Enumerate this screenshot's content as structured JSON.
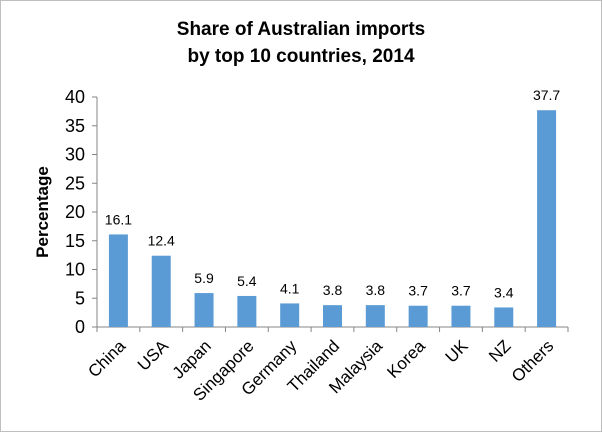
{
  "chart_data": {
    "type": "bar",
    "title_lines": [
      "Share of Australian imports",
      "by top 10 countries, 2014"
    ],
    "xlabel": "",
    "ylabel": "Percentage",
    "ylim": [
      0,
      40
    ],
    "yticks": [
      "0",
      "5",
      "10",
      "15",
      "20",
      "25",
      "30",
      "35",
      "40"
    ],
    "categories": [
      "China",
      "USA",
      "Japan",
      "Singapore",
      "Germany",
      "Thailand",
      "Malaysia",
      "Korea",
      "UK",
      "NZ",
      "Others"
    ],
    "values": [
      16.1,
      12.4,
      5.9,
      5.4,
      4.1,
      3.8,
      3.8,
      3.7,
      3.7,
      3.4,
      37.7
    ],
    "value_labels": [
      "16.1",
      "12.4",
      "5.9",
      "5.4",
      "4.1",
      "3.8",
      "3.8",
      "3.7",
      "3.7",
      "3.4",
      "37.7"
    ],
    "bar_color": "#5b9bd5",
    "grid": false,
    "legend": "none"
  }
}
